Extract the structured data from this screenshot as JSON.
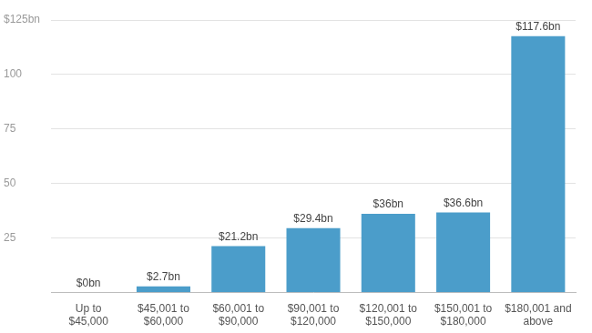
{
  "chart_data": {
    "type": "bar",
    "categories": [
      "Up to $45,000",
      "$45,001 to $60,000",
      "$60,001 to $90,000",
      "$90,001 to $120,000",
      "$120,001 to $150,000",
      "$150,001 to $180,000",
      "$180,001 and above"
    ],
    "values": [
      0,
      2.7,
      21.2,
      29.4,
      36,
      36.6,
      117.6
    ],
    "value_labels": [
      "$0bn",
      "$2.7bn",
      "$21.2bn",
      "$29.4bn",
      "$36bn",
      "$36.6bn",
      "$117.6bn"
    ],
    "data_labels": true,
    "color": "#4b9dca",
    "ylim": [
      0,
      125
    ],
    "yticks": [
      25,
      50,
      75,
      100,
      {
        "value": 125,
        "label": "$125bn"
      }
    ],
    "grid": true
  }
}
